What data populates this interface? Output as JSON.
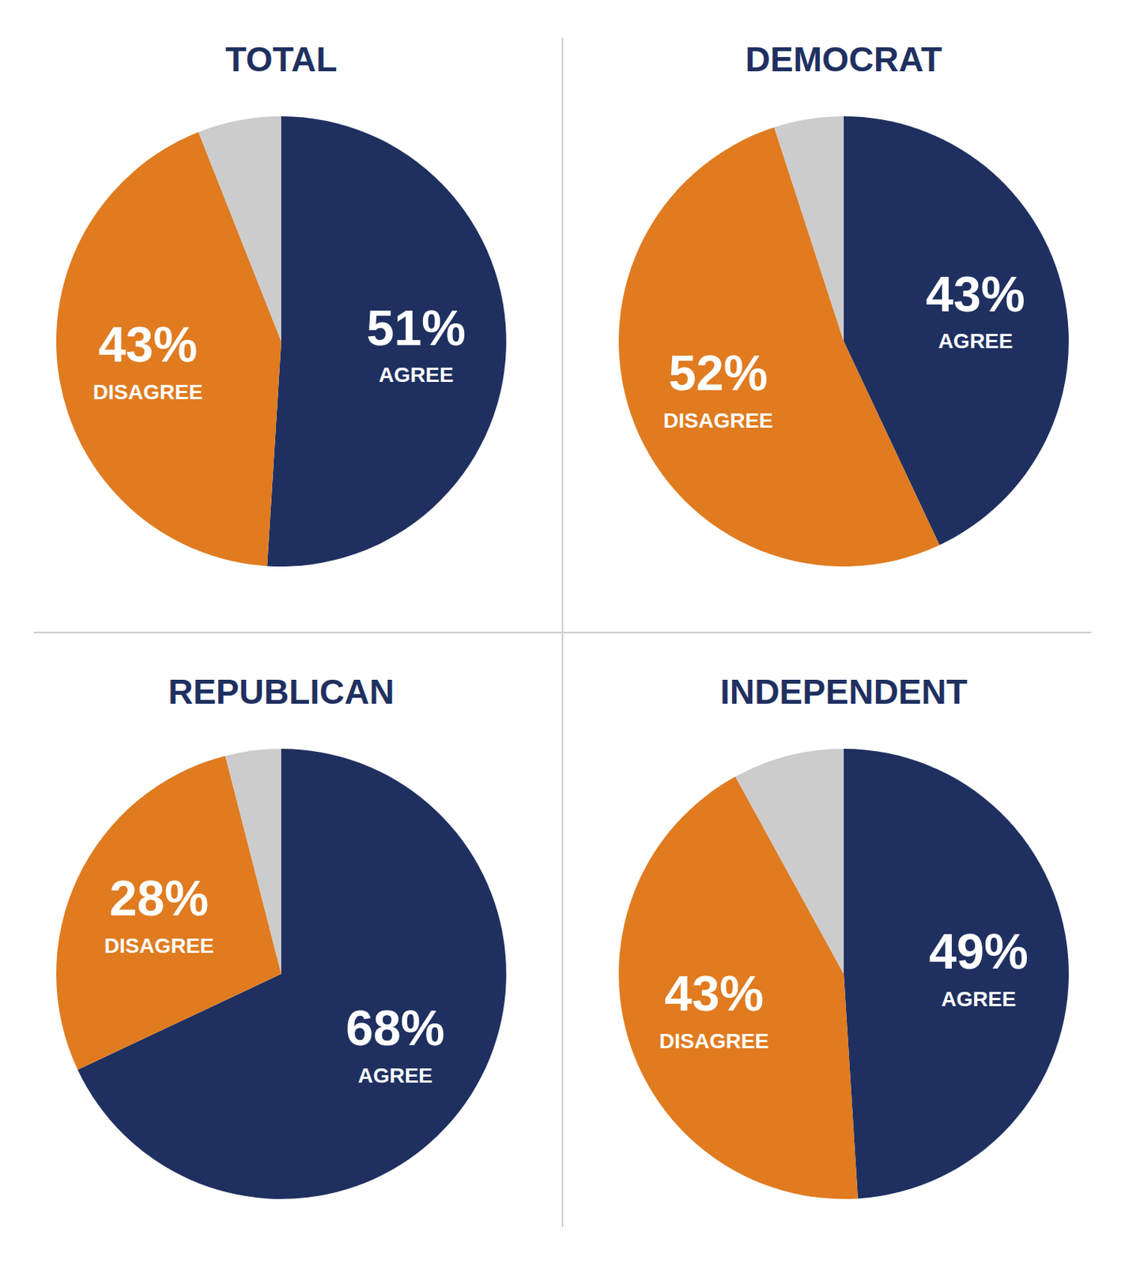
{
  "chart_data": [
    {
      "type": "pie",
      "title": "TOTAL",
      "categories": [
        "AGREE",
        "DISAGREE",
        null
      ],
      "values": [
        51,
        43,
        6
      ],
      "value_labels": [
        "51%",
        "43%",
        null
      ],
      "colors": [
        "#1f3060",
        "#e07b20",
        "#cccccc"
      ],
      "data_labels": true
    },
    {
      "type": "pie",
      "title": "DEMOCRAT",
      "categories": [
        "AGREE",
        "DISAGREE",
        null
      ],
      "values": [
        43,
        52,
        5
      ],
      "value_labels": [
        "43%",
        "52%",
        null
      ],
      "colors": [
        "#1f3060",
        "#e07b20",
        "#cccccc"
      ],
      "data_labels": true
    },
    {
      "type": "pie",
      "title": "REPUBLICAN",
      "categories": [
        "AGREE",
        "DISAGREE",
        null
      ],
      "values": [
        68,
        28,
        4
      ],
      "value_labels": [
        "68%",
        "28%",
        null
      ],
      "colors": [
        "#1f3060",
        "#e07b20",
        "#cccccc"
      ],
      "data_labels": true
    },
    {
      "type": "pie",
      "title": "INDEPENDENT",
      "categories": [
        "AGREE",
        "DISAGREE",
        null
      ],
      "values": [
        49,
        43,
        8
      ],
      "value_labels": [
        "49%",
        "43%",
        null
      ],
      "colors": [
        "#1f3060",
        "#e07b20",
        "#cccccc"
      ],
      "data_labels": true
    }
  ]
}
